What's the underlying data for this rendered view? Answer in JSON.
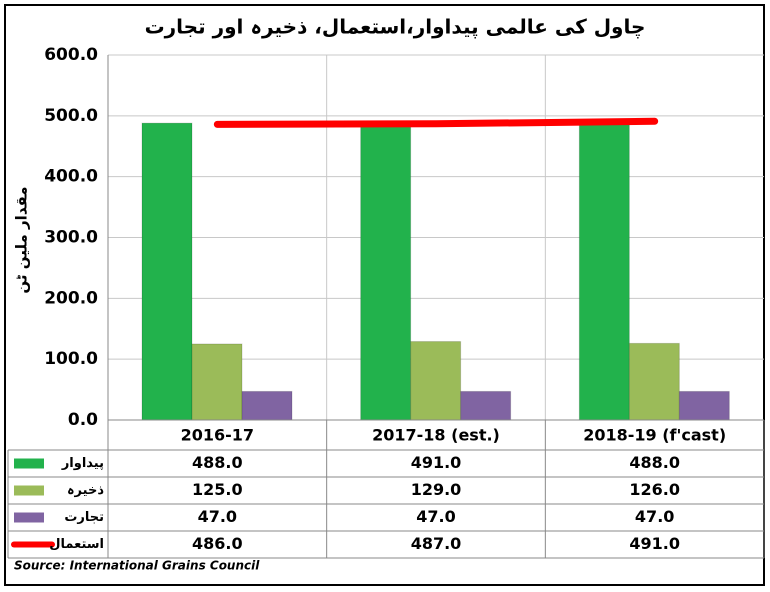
{
  "chart_data": {
    "type": "bar",
    "title": "چاول کی عالمی پیداوار،استعمال، ذخیرہ اور تجارت",
    "ylabel": "مقدار ملین ٹن",
    "categories": [
      "2016-17",
      "2017-18 (est.)",
      "2018-19 (f'cast)"
    ],
    "series": [
      {
        "name": "پیداوار",
        "color": "#22b24c",
        "values": [
          488,
          491,
          488
        ],
        "value_labels": [
          "488.0",
          "491.0",
          "488.0"
        ]
      },
      {
        "name": "ذخیرہ",
        "color": "#9bbb59",
        "values": [
          125,
          129,
          126
        ],
        "value_labels": [
          "125.0",
          "129.0",
          "126.0"
        ]
      },
      {
        "name": "تجارت",
        "color": "#8064a2",
        "values": [
          47,
          47,
          47
        ],
        "value_labels": [
          "47.0",
          "47.0",
          "47.0"
        ]
      },
      {
        "name": "استعمال",
        "color": "#ff0000",
        "type": "line",
        "values": [
          486,
          487,
          491
        ],
        "value_labels": [
          "486.0",
          "487.0",
          "491.0"
        ]
      }
    ],
    "ylim": [
      0,
      600
    ],
    "yticks": [
      {
        "value": 0,
        "label": "0.0"
      },
      {
        "value": 100,
        "label": "100.0"
      },
      {
        "value": 200,
        "label": "200.0"
      },
      {
        "value": 300,
        "label": "300.0"
      },
      {
        "value": 400,
        "label": "400.0"
      },
      {
        "value": 500,
        "label": "500.0"
      },
      {
        "value": 600,
        "label": "600.0"
      }
    ],
    "grid": true,
    "source": "Source: International Grains Council"
  }
}
